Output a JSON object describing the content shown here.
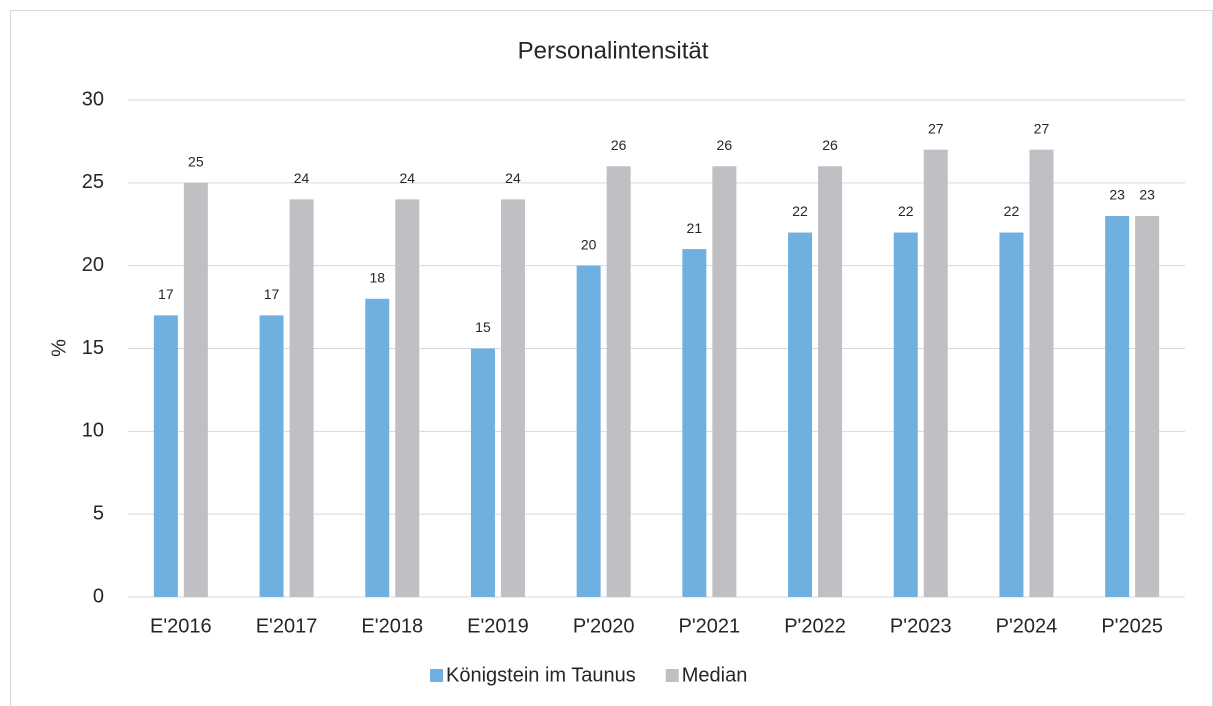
{
  "chart_data": {
    "type": "bar",
    "title": "Personalintensität",
    "y_label": "%",
    "categories": [
      "E'2016",
      "E'2017",
      "E'2018",
      "E'2019",
      "P'2020",
      "P'2021",
      "P'2022",
      "P'2023",
      "P'2024",
      "P'2025"
    ],
    "series": [
      {
        "name": "Königstein im Taunus",
        "color": "#70b0e0",
        "values": [
          17,
          17,
          18,
          15,
          20,
          21,
          22,
          22,
          22,
          23
        ]
      },
      {
        "name": "Median",
        "color": "#bfbfc4",
        "values": [
          25,
          24,
          24,
          24,
          26,
          26,
          26,
          27,
          27,
          23
        ]
      }
    ],
    "ylim": [
      0,
      30
    ],
    "yticks": [
      0,
      5,
      10,
      15,
      20,
      25,
      30
    ],
    "grid": true,
    "legend": "bottom"
  }
}
